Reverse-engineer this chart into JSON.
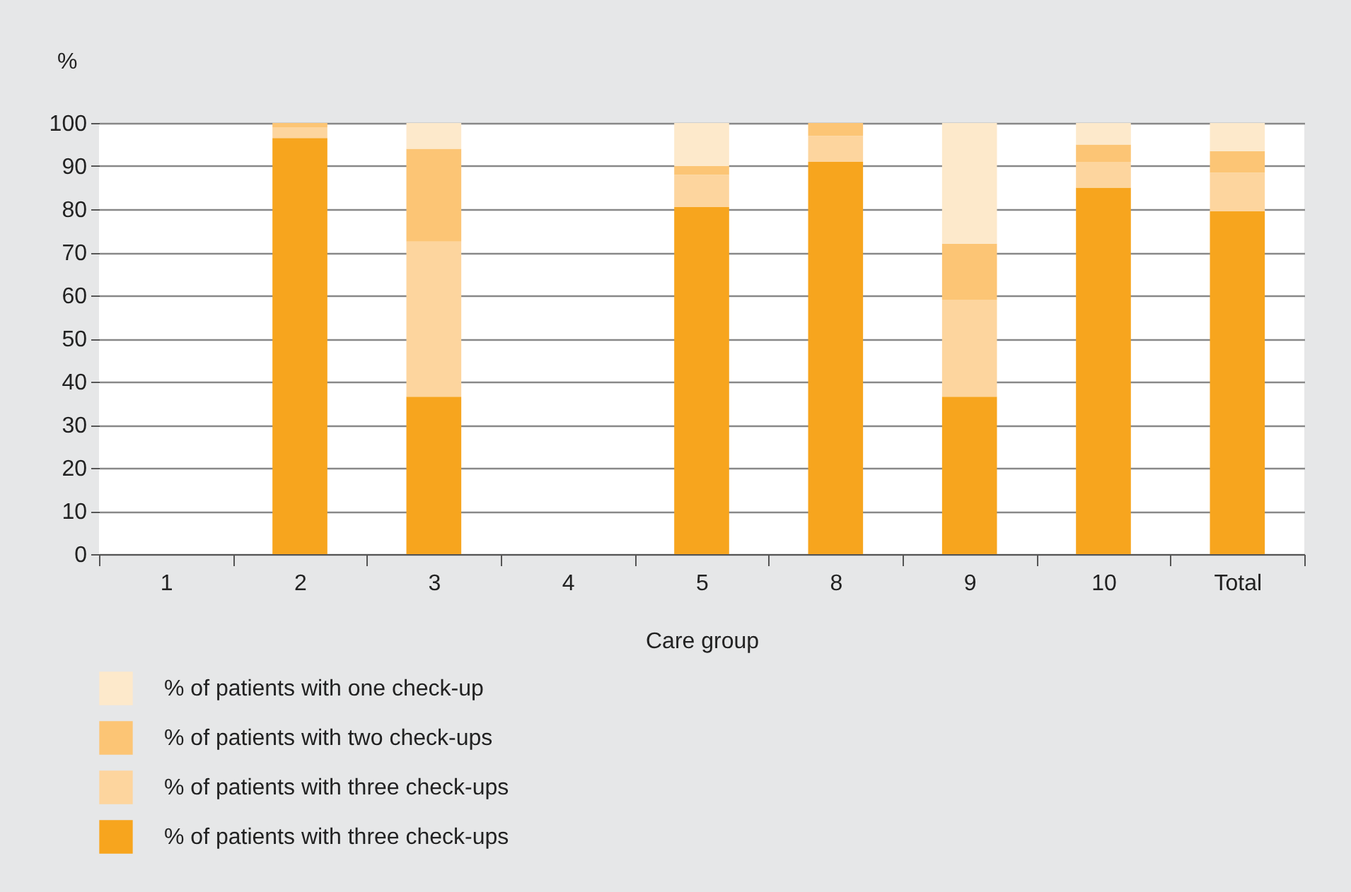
{
  "chart_data": {
    "type": "bar",
    "stacked": true,
    "xlabel": "Care group",
    "ylabel": "%",
    "categories": [
      "1",
      "2",
      "3",
      "4",
      "5",
      "8",
      "9",
      "10",
      "Total"
    ],
    "series": [
      {
        "name": "% of patients with three check-ups",
        "color": "#f7a51e",
        "values": [
          null,
          96.5,
          36.5,
          null,
          80.5,
          91,
          36.5,
          85,
          79.5
        ]
      },
      {
        "name": "% of patients with three check-ups",
        "color": "#fdd59e",
        "values": [
          null,
          2.5,
          36,
          null,
          7.5,
          6,
          22.5,
          6,
          9
        ]
      },
      {
        "name": "% of patients with two check-ups",
        "color": "#fcc575",
        "values": [
          null,
          1,
          21.5,
          null,
          2,
          3,
          13,
          4,
          5
        ]
      },
      {
        "name": "% of patients with one check-up",
        "color": "#fde9cb",
        "values": [
          null,
          0,
          6,
          null,
          10,
          0,
          28,
          5,
          6.5
        ]
      }
    ],
    "ylim": [
      0,
      100
    ],
    "yticks": [
      0,
      10,
      20,
      30,
      40,
      50,
      60,
      70,
      80,
      90,
      100
    ],
    "grid": "y",
    "legend": "bottom left"
  }
}
